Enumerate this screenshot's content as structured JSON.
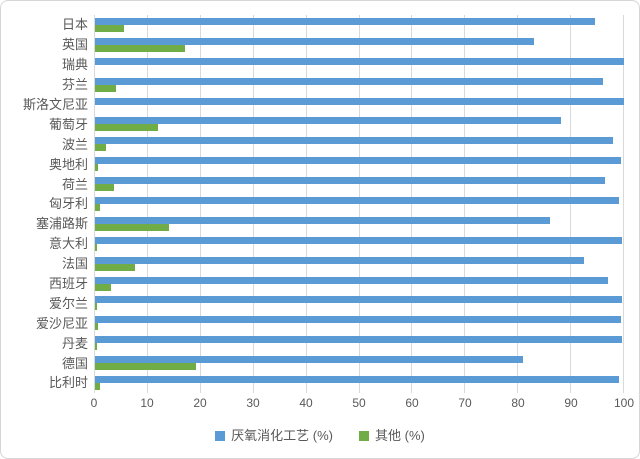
{
  "chart_data": {
    "type": "bar",
    "orientation": "horizontal",
    "title": "",
    "categories": [
      "日本",
      "英国",
      "瑞典",
      "芬兰",
      "斯洛文尼亚",
      "葡萄牙",
      "波兰",
      "奥地利",
      "荷兰",
      "匈牙利",
      "塞浦路斯",
      "意大利",
      "法国",
      "西班牙",
      "爱尔兰",
      "爱沙尼亚",
      "丹麦",
      "德国",
      "比利时"
    ],
    "series": [
      {
        "name": "厌氧消化工艺 (%)",
        "color": "#5b9bd5",
        "values": [
          94.5,
          83,
          100,
          96,
          100,
          88,
          98,
          99.5,
          96.5,
          99,
          86,
          99.7,
          92.5,
          97,
          99.7,
          99.4,
          99.7,
          81,
          99
        ]
      },
      {
        "name": "其他 (%)",
        "color": "#70ad47",
        "values": [
          5.5,
          17,
          0,
          4,
          0,
          12,
          2,
          0.5,
          3.5,
          1,
          14,
          0.3,
          7.5,
          3,
          0.3,
          0.6,
          0.3,
          19,
          1
        ]
      }
    ],
    "x_axis": {
      "min": 0,
      "max": 100,
      "tick_step": 10,
      "ticks": [
        0,
        10,
        20,
        30,
        40,
        50,
        60,
        70,
        80,
        90,
        100
      ]
    },
    "legend": {
      "position": "bottom",
      "entries": [
        "厌氧消化工艺 (%)",
        "其他 (%)"
      ]
    },
    "grid": true,
    "colors": {
      "gridline": "#d9d9d9",
      "axis_text": "#595959",
      "frame_border": "#d6d6d6"
    }
  }
}
